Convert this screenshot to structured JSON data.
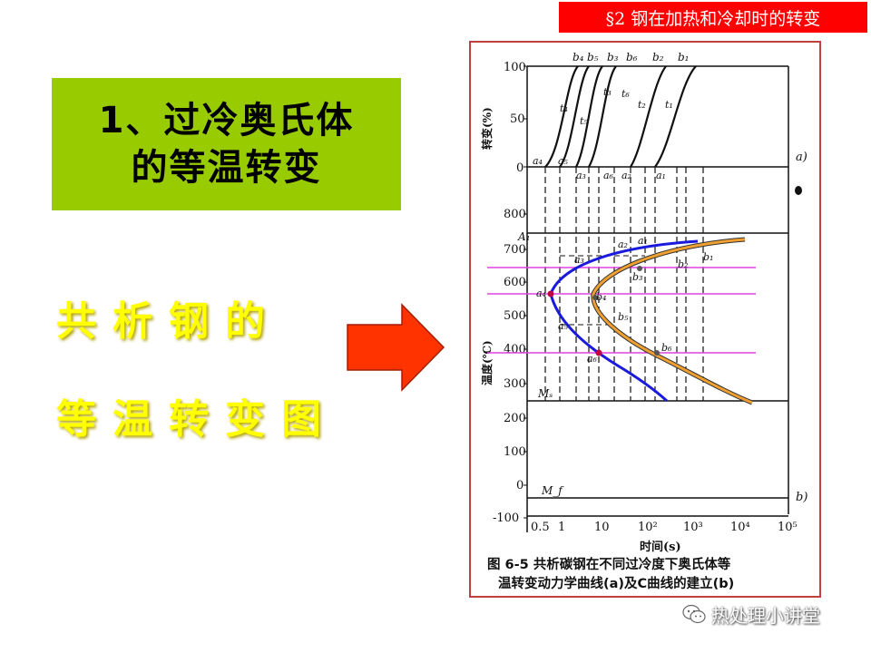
{
  "header": {
    "section_title": "§2 钢在加热和冷却时的转变"
  },
  "title_box": {
    "line1": "1、过冷奥氏体",
    "line2": "的等温转变"
  },
  "yellow_caption": {
    "line1": "共析钢的",
    "line2": "等温转变图"
  },
  "figure": {
    "caption_line1": "图 6-5  共析碳钢在不同过冷度下奥氏体等",
    "caption_line2": "温转变动力学曲线(a)及C曲线的建立(b)",
    "upper_ylabel": "转变(%)",
    "lower_ylabel": "温度(℃)",
    "xlabel": "时间(s)",
    "upper_ticks": [
      "100",
      "50",
      "0"
    ],
    "lower_ticks": [
      "800",
      "700",
      "600",
      "500",
      "400",
      "300",
      "200",
      "100",
      "0",
      "-100"
    ],
    "x_ticks": [
      "0.5",
      "1",
      "10",
      "10²",
      "10³",
      "10⁴",
      "10⁵"
    ],
    "panel_a_label": "a)",
    "panel_b_label": "b)",
    "A1_label": "A₁",
    "Ms_label": "Mₛ",
    "Mf_label": "M_f",
    "b_top_labels": [
      "b₄",
      "b₅",
      "b₃",
      "b₆",
      "b₂",
      "b₁"
    ],
    "a_zero_labels": [
      "a₄",
      "a₅",
      "a₃",
      "a₆",
      "a₂",
      "a₁"
    ],
    "t_labels": [
      "t₄",
      "t₅",
      "t₃",
      "t₆",
      "t₂",
      "t₁"
    ],
    "a_curve_labels": [
      "a₂",
      "a₁",
      "a₃",
      "a₄",
      "a₅",
      "a₆"
    ],
    "b_curve_labels": [
      "b₂",
      "b₁",
      "b₃",
      "b₄",
      "b₅",
      "b₆"
    ],
    "start_curve_color": "#1a1adc",
    "finish_curve_color": "#f0a030",
    "isotherm_color": "#e040e0"
  },
  "watermark": {
    "text": "热处理小讲堂",
    "icon": "wechat-icon"
  },
  "colors": {
    "banner": "#ff0000",
    "title_bg": "#99cc00",
    "caption_yellow": "#ffff00",
    "arrow_fill": "#ff3300",
    "frame_border": "#c04040"
  }
}
